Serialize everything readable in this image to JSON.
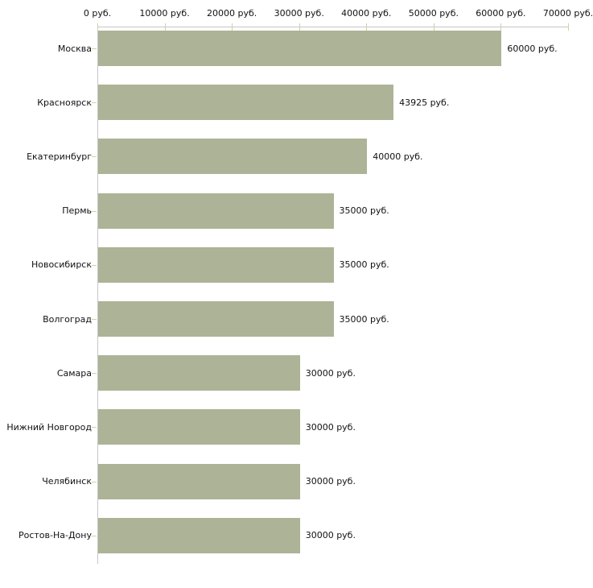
{
  "chart_data": {
    "type": "bar",
    "orientation": "horizontal",
    "title": "",
    "xlabel": "",
    "ylabel": "",
    "unit": "руб.",
    "categories": [
      "Москва",
      "Красноярск",
      "Екатеринбург",
      "Пермь",
      "Новосибирск",
      "Волгоград",
      "Самара",
      "Нижний Новгород",
      "Челябинск",
      "Ростов-На-Дону"
    ],
    "values": [
      60000,
      43925,
      40000,
      35000,
      35000,
      35000,
      30000,
      30000,
      30000,
      30000
    ],
    "value_labels": [
      "60000 руб.",
      "43925 руб.",
      "40000 руб.",
      "35000 руб.",
      "35000 руб.",
      "35000 руб.",
      "30000 руб.",
      "30000 руб.",
      "30000 руб.",
      "30000 руб."
    ],
    "xlim": [
      0,
      70000
    ],
    "x_ticks": [
      0,
      10000,
      20000,
      30000,
      40000,
      50000,
      60000,
      70000
    ],
    "x_tick_labels": [
      "0 руб.",
      "10000 руб.",
      "20000 руб.",
      "30000 руб.",
      "40000 руб.",
      "50000 руб.",
      "60000 руб.",
      "70000 руб."
    ],
    "grid": false,
    "legend": false,
    "colors": {
      "bar": "#adb396",
      "axis_line": "#c6c6c6",
      "tick_mark": "#cfd1a9",
      "text": "#111111",
      "background": "#ffffff"
    }
  }
}
